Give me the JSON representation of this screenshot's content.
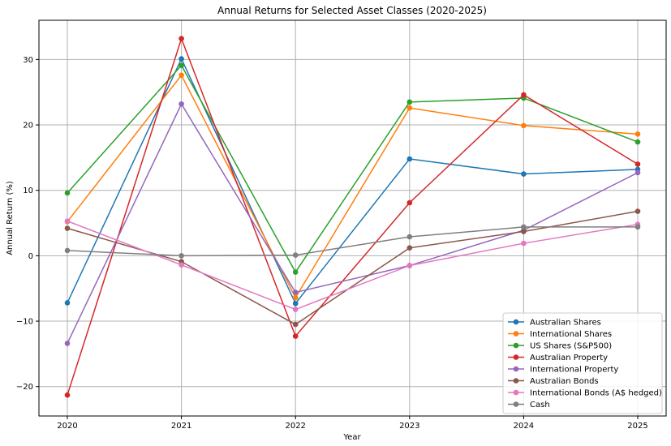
{
  "chart_data": {
    "type": "line",
    "title": "Annual Returns for Selected Asset Classes (2020-2025)",
    "xlabel": "Year",
    "ylabel": "Annual Return (%)",
    "x": [
      "2020",
      "2021",
      "2022",
      "2023",
      "2024",
      "2025"
    ],
    "yticks": [
      -20,
      -10,
      0,
      10,
      20,
      30
    ],
    "ytick_labels": [
      "−20",
      "−10",
      "0",
      "10",
      "20",
      "30"
    ],
    "ylim": [
      -24.5,
      36
    ],
    "grid": true,
    "legend_position": "lower-right",
    "series": [
      {
        "name": "Australian Shares",
        "color": "#1f77b4",
        "values": [
          -7.2,
          30.1,
          -7.3,
          14.8,
          12.5,
          13.2
        ]
      },
      {
        "name": "International Shares",
        "color": "#ff7f0e",
        "values": [
          5.2,
          27.6,
          -6.4,
          22.6,
          19.9,
          18.6
        ]
      },
      {
        "name": "US Shares (S&P500)",
        "color": "#2ca02c",
        "values": [
          9.6,
          29.1,
          -2.5,
          23.5,
          24.1,
          17.4
        ]
      },
      {
        "name": "Australian Property",
        "color": "#d62728",
        "values": [
          -21.3,
          33.2,
          -12.3,
          8.1,
          24.6,
          14.0
        ]
      },
      {
        "name": "International Property",
        "color": "#9467bd",
        "values": [
          -13.4,
          23.2,
          -5.6,
          -1.5,
          3.9,
          12.7
        ]
      },
      {
        "name": "Australian Bonds",
        "color": "#8c564b",
        "values": [
          4.2,
          -0.9,
          -10.5,
          1.2,
          3.7,
          6.8
        ]
      },
      {
        "name": "International Bonds (A$ hedged)",
        "color": "#e377c2",
        "values": [
          5.3,
          -1.4,
          -8.2,
          -1.5,
          1.9,
          4.8
        ]
      },
      {
        "name": "Cash",
        "color": "#7f7f7f",
        "values": [
          0.8,
          0.0,
          0.1,
          2.9,
          4.4,
          4.4
        ]
      }
    ]
  }
}
